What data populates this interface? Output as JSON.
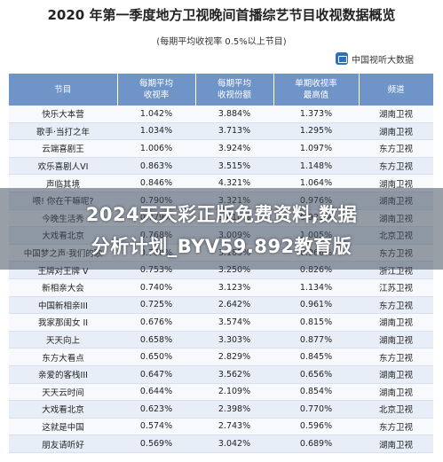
{
  "title": "2020 年第一季度地方卫视晚间首播综艺节目收视数据概览",
  "subtitle": "(每期平均收视率 0.5%以上节目)",
  "brand": "中国视听大数据",
  "table": {
    "headers": [
      [
        "节目",
        ""
      ],
      [
        "每期平均",
        "收视率"
      ],
      [
        "每期平均",
        "收视份额"
      ],
      [
        "单期收视率",
        "最高值"
      ],
      [
        "频道",
        ""
      ]
    ],
    "rows": [
      [
        "快乐大本营",
        "1.042%",
        "3.884%",
        "1.373%",
        "湖南卫视"
      ],
      [
        "歌手·当打之年",
        "1.034%",
        "3.713%",
        "1.295%",
        "湖南卫视"
      ],
      [
        "云端喜剧王",
        "1.006%",
        "3.924%",
        "1.097%",
        "东方卫视"
      ],
      [
        "欢乐喜剧人VI",
        "0.863%",
        "3.515%",
        "1.148%",
        "东方卫视"
      ],
      [
        "声临其境",
        "0.846%",
        "4.321%",
        "1.064%",
        "湖南卫视"
      ],
      [
        "喂! 你在干嘛呢?",
        "0.790%",
        "3.321%",
        "0.976%",
        "湖南卫视"
      ],
      [
        "今晚生活秀",
        "0.779%",
        "3.610%",
        "0.921%",
        "湖南卫视"
      ],
      [
        "大戏看北京",
        "0.768%",
        "3.009%",
        "1.005%",
        "北京卫视"
      ],
      [
        "中国梦之声·我们的歌",
        "0.760%",
        "3.183%",
        "0.966%",
        "东方卫视"
      ],
      [
        "王牌对王牌 V",
        "0.753%",
        "3.250%",
        "0.826%",
        "浙江卫视"
      ],
      [
        "新相亲大会",
        "0.740%",
        "3.123%",
        "1.134%",
        "江苏卫视"
      ],
      [
        "中国新相亲III",
        "0.725%",
        "2.642%",
        "0.961%",
        "东方卫视"
      ],
      [
        "我家那闺女 II",
        "0.676%",
        "3.574%",
        "0.815%",
        "湖南卫视"
      ],
      [
        "天天向上",
        "0.658%",
        "3.303%",
        "0.877%",
        "湖南卫视"
      ],
      [
        "东方大看点",
        "0.650%",
        "2.829%",
        "0.845%",
        "东方卫视"
      ],
      [
        "亲爱的客栈III",
        "0.647%",
        "3.562%",
        "0.656%",
        "湖南卫视"
      ],
      [
        "天天云时间",
        "0.644%",
        "2.109%",
        "0.854%",
        "湖南卫视"
      ],
      [
        "大戏看北京",
        "0.623%",
        "2.398%",
        "0.770%",
        "北京卫视"
      ],
      [
        "这就是中国",
        "0.574%",
        "2.743%",
        "0.596%",
        "东方卫视"
      ],
      [
        "朋友请听好",
        "0.569%",
        "3.042%",
        "0.689%",
        "湖南卫视"
      ]
    ]
  },
  "banner": {
    "line1": "2024天天彩正版免费资料,数据",
    "line2": "分析计划_BYV59.892教育版"
  }
}
